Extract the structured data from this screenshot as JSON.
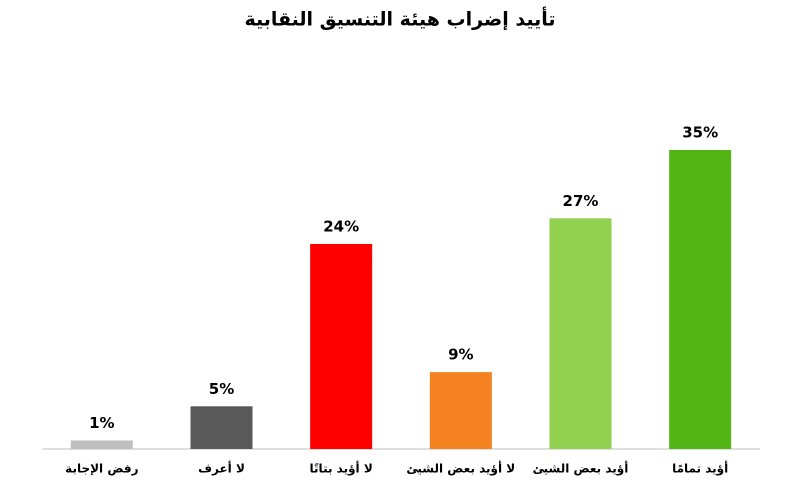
{
  "chart_data": {
    "type": "bar",
    "title": "تأييد إضراب هيئة التنسيق النقابية",
    "categories": [
      "رفض الإجابة",
      "لا أعرف",
      "لا أؤيد بتاتًا",
      "لا أؤيد بعض الشيئ",
      "أؤيد بعض الشيئ",
      "أؤيد تمامًا"
    ],
    "values": [
      1,
      5,
      24,
      9,
      27,
      35
    ],
    "value_labels": [
      "1%",
      "5%",
      "24%",
      "9%",
      "27%",
      "35%"
    ],
    "colors": [
      "#bfbfbf",
      "#595959",
      "#ff0000",
      "#f58220",
      "#92d050",
      "#52b415"
    ]
  }
}
